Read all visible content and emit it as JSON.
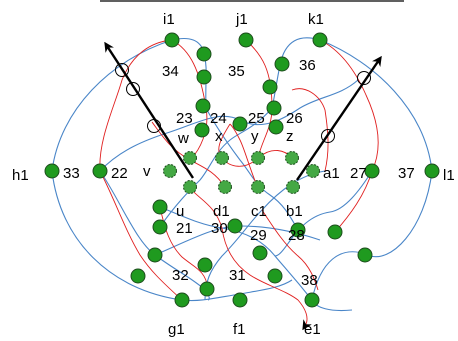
{
  "labels": {
    "i1": "i1",
    "j1": "j1",
    "k1": "k1",
    "n34": "34",
    "n35": "35",
    "n36": "36",
    "n23": "23",
    "n24": "24",
    "n25": "25",
    "n26": "26",
    "w": "w",
    "x": "x",
    "y": "y",
    "z": "z",
    "h1": "h1",
    "n33": "33",
    "n22": "22",
    "v": "v",
    "a1": "a1",
    "n27": "27",
    "n37": "37",
    "l1": "l1",
    "u": "u",
    "d1": "d1",
    "c1": "c1",
    "b1": "b1",
    "n21": "21",
    "n30": "30",
    "n29": "29",
    "n28": "28",
    "n32": "32",
    "n31": "31",
    "n38": "38",
    "g1": "g1",
    "f1": "f1",
    "e1": "e1"
  },
  "colors": {
    "node_fill": "#1f9a1f",
    "node_stroke": "#1d4d1d",
    "blue_curve": "#4a86c8",
    "red_curve": "#e02020",
    "arrow": "#000000"
  }
}
